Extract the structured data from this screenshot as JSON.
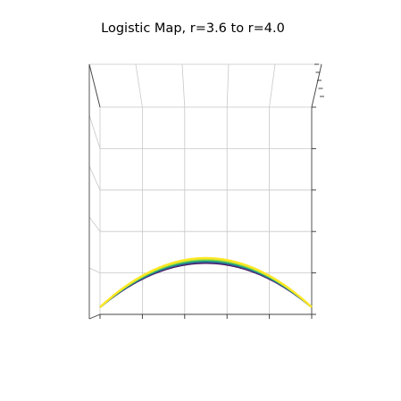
{
  "chart_data": {
    "type": "line",
    "projection": "3d",
    "title": "Logistic Map, r=3.6 to r=4.0",
    "xlabel": "",
    "ylabel": "",
    "zlabel": "",
    "x": "x from 0 to 1",
    "xlim": [
      0,
      1
    ],
    "ylim": [
      0,
      1
    ],
    "r_range": [
      3.6,
      4.0
    ],
    "function": "r * x * (1 - x)",
    "series": [
      {
        "r": 3.6,
        "color": "#440154"
      },
      {
        "r": 3.65,
        "color": "#46327e"
      },
      {
        "r": 3.7,
        "color": "#365c8d"
      },
      {
        "r": 3.75,
        "color": "#277f8e"
      },
      {
        "r": 3.8,
        "color": "#1fa187"
      },
      {
        "r": 3.85,
        "color": "#4ac16d"
      },
      {
        "r": 3.9,
        "color": "#a0da39"
      },
      {
        "r": 4.0,
        "color": "#fde725"
      }
    ],
    "tick_labels_visible": false,
    "grid": true
  }
}
